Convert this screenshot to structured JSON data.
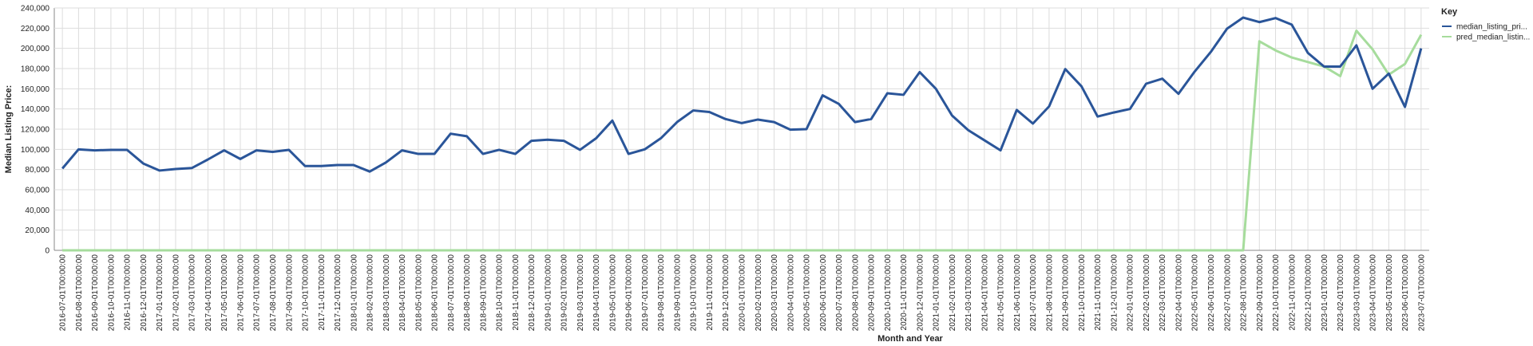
{
  "chart_data": {
    "type": "line",
    "x_label": "Month and Year",
    "y_label": "Median Listing Price:",
    "legend_title": "Key",
    "legend_position": "right",
    "grid": true,
    "categories": [
      "2016-07-01T00:00:00",
      "2016-08-01T00:00:00",
      "2016-09-01T00:00:00",
      "2016-10-01T00:00:00",
      "2016-11-01T00:00:00",
      "2016-12-01T00:00:00",
      "2017-01-01T00:00:00",
      "2017-02-01T00:00:00",
      "2017-03-01T00:00:00",
      "2017-04-01T00:00:00",
      "2017-05-01T00:00:00",
      "2017-06-01T00:00:00",
      "2017-07-01T00:00:00",
      "2017-08-01T00:00:00",
      "2017-09-01T00:00:00",
      "2017-10-01T00:00:00",
      "2017-11-01T00:00:00",
      "2017-12-01T00:00:00",
      "2018-01-01T00:00:00",
      "2018-02-01T00:00:00",
      "2018-03-01T00:00:00",
      "2018-04-01T00:00:00",
      "2018-05-01T00:00:00",
      "2018-06-01T00:00:00",
      "2018-07-01T00:00:00",
      "2018-08-01T00:00:00",
      "2018-09-01T00:00:00",
      "2018-10-01T00:00:00",
      "2018-11-01T00:00:00",
      "2018-12-01T00:00:00",
      "2019-01-01T00:00:00",
      "2019-02-01T00:00:00",
      "2019-03-01T00:00:00",
      "2019-04-01T00:00:00",
      "2019-05-01T00:00:00",
      "2019-06-01T00:00:00",
      "2019-07-01T00:00:00",
      "2019-08-01T00:00:00",
      "2019-09-01T00:00:00",
      "2019-10-01T00:00:00",
      "2019-11-01T00:00:00",
      "2019-12-01T00:00:00",
      "2020-01-01T00:00:00",
      "2020-02-01T00:00:00",
      "2020-03-01T00:00:00",
      "2020-04-01T00:00:00",
      "2020-05-01T00:00:00",
      "2020-06-01T00:00:00",
      "2020-07-01T00:00:00",
      "2020-08-01T00:00:00",
      "2020-09-01T00:00:00",
      "2020-10-01T00:00:00",
      "2020-11-01T00:00:00",
      "2020-12-01T00:00:00",
      "2021-01-01T00:00:00",
      "2021-02-01T00:00:00",
      "2021-03-01T00:00:00",
      "2021-04-01T00:00:00",
      "2021-05-01T00:00:00",
      "2021-06-01T00:00:00",
      "2021-07-01T00:00:00",
      "2021-08-01T00:00:00",
      "2021-09-01T00:00:00",
      "2021-10-01T00:00:00",
      "2021-11-01T00:00:00",
      "2021-12-01T00:00:00",
      "2022-01-01T00:00:00",
      "2022-02-01T00:00:00",
      "2022-03-01T00:00:00",
      "2022-04-01T00:00:00",
      "2022-05-01T00:00:00",
      "2022-06-01T00:00:00",
      "2022-07-01T00:00:00",
      "2022-08-01T00:00:00",
      "2022-09-01T00:00:00",
      "2022-10-01T00:00:00",
      "2022-11-01T00:00:00",
      "2022-12-01T00:00:00",
      "2023-01-01T00:00:00",
      "2023-02-01T00:00:00",
      "2023-03-01T00:00:00",
      "2023-04-01T00:00:00",
      "2023-05-01T00:00:00",
      "2023-06-01T00:00:00",
      "2023-07-01T00:00:00"
    ],
    "series": [
      {
        "name": "median_listing_pri...",
        "color": "#2a5599",
        "values": [
          81000,
          100000,
          99000,
          99500,
          99500,
          86000,
          79000,
          80500,
          81500,
          90000,
          99000,
          90500,
          99000,
          97500,
          99500,
          83500,
          83500,
          84500,
          84500,
          78000,
          87000,
          99000,
          95500,
          95500,
          115500,
          113000,
          95500,
          99500,
          95500,
          108500,
          109500,
          108500,
          99500,
          111000,
          128500,
          95500,
          100000,
          111000,
          127000,
          138500,
          137000,
          130000,
          126000,
          129500,
          127000,
          119500,
          120000,
          153500,
          145000,
          127000,
          130000,
          155500,
          154000,
          176500,
          160000,
          133500,
          119000,
          109000,
          99000,
          139000,
          125500,
          142500,
          179500,
          162500,
          132500,
          136500,
          140000,
          165000,
          170000,
          155000,
          177000,
          196500,
          219500,
          230500,
          226000,
          230000,
          223500,
          195500,
          182000,
          182000,
          203000,
          160000,
          175000,
          142000,
          200000
        ]
      },
      {
        "name": "pred_median_listin...",
        "color": "#a6dc9c",
        "values": [
          0,
          0,
          0,
          0,
          0,
          0,
          0,
          0,
          0,
          0,
          0,
          0,
          0,
          0,
          0,
          0,
          0,
          0,
          0,
          0,
          0,
          0,
          0,
          0,
          0,
          0,
          0,
          0,
          0,
          0,
          0,
          0,
          0,
          0,
          0,
          0,
          0,
          0,
          0,
          0,
          0,
          0,
          0,
          0,
          0,
          0,
          0,
          0,
          0,
          0,
          0,
          0,
          0,
          0,
          0,
          0,
          0,
          0,
          0,
          0,
          0,
          0,
          0,
          0,
          0,
          0,
          0,
          0,
          0,
          0,
          0,
          0,
          0,
          0,
          207000,
          198000,
          191000,
          186500,
          182000,
          172500,
          217500,
          199000,
          174000,
          184500,
          213500
        ]
      }
    ],
    "ylim": [
      0,
      240000
    ],
    "yticks": [
      0,
      {
        "value": 20000,
        "label": "20,000"
      },
      {
        "value": 40000,
        "label": "40,000"
      },
      {
        "value": 60000,
        "label": "60,000"
      },
      {
        "value": 80000,
        "label": "80,000"
      },
      {
        "value": 100000,
        "label": "100,000"
      },
      {
        "value": 120000,
        "label": "120,000"
      },
      {
        "value": 140000,
        "label": "140,000"
      },
      {
        "value": 160000,
        "label": "160,000"
      },
      {
        "value": 180000,
        "label": "180,000"
      },
      {
        "value": 200000,
        "label": "200,000"
      },
      {
        "value": 220000,
        "label": "220,000"
      },
      {
        "value": 240000,
        "label": "240,000"
      }
    ]
  }
}
